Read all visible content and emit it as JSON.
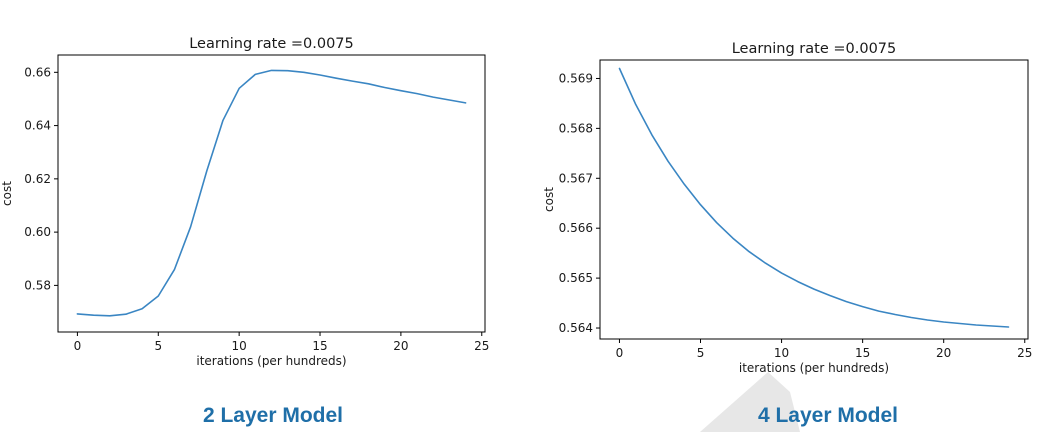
{
  "colors": {
    "line": "#3a86c3",
    "caption": "#1f6fa8",
    "watermark": "#e7e7e7"
  },
  "captions": [
    "2 Layer Model",
    "4 Layer Model"
  ],
  "chart_data": [
    {
      "type": "line",
      "title": "Learning rate =0.0075",
      "xlabel": "iterations (per hundreds)",
      "ylabel": "cost",
      "xlim": [
        -1.2,
        25.2
      ],
      "ylim": [
        0.5625,
        0.6665
      ],
      "xticks": [
        0,
        5,
        10,
        15,
        20,
        25
      ],
      "xtick_labels": [
        "0",
        "5",
        "10",
        "15",
        "20",
        "25"
      ],
      "yticks": [
        0.58,
        0.6,
        0.62,
        0.64,
        0.66
      ],
      "ytick_labels": [
        "0.58",
        "0.60",
        "0.62",
        "0.64",
        "0.66"
      ],
      "grid": false,
      "series": [
        {
          "x": [
            0,
            1,
            2,
            3,
            4,
            5,
            6,
            7,
            8,
            9,
            10,
            11,
            12,
            13,
            14,
            15,
            16,
            17,
            18,
            19,
            20,
            21,
            22,
            23,
            24
          ],
          "values": [
            0.5693,
            0.5688,
            0.5686,
            0.5692,
            0.5712,
            0.576,
            0.586,
            0.602,
            0.623,
            0.642,
            0.654,
            0.6592,
            0.6607,
            0.6606,
            0.66,
            0.659,
            0.6578,
            0.6567,
            0.6557,
            0.6543,
            0.6531,
            0.652,
            0.6507,
            0.6496,
            0.6485
          ]
        }
      ]
    },
    {
      "type": "line",
      "title": "Learning rate =0.0075",
      "xlabel": "iterations (per hundreds)",
      "ylabel": "cost",
      "xlim": [
        -1.2,
        25.2
      ],
      "ylim": [
        0.56378,
        0.56937
      ],
      "xticks": [
        0,
        5,
        10,
        15,
        20,
        25
      ],
      "xtick_labels": [
        "0",
        "5",
        "10",
        "15",
        "20",
        "25"
      ],
      "yticks": [
        0.564,
        0.565,
        0.566,
        0.567,
        0.568,
        0.569
      ],
      "ytick_labels": [
        "0.564",
        "0.565",
        "0.566",
        "0.567",
        "0.568",
        "0.569"
      ],
      "grid": false,
      "series": [
        {
          "x": [
            0,
            1,
            2,
            3,
            4,
            5,
            6,
            7,
            8,
            9,
            10,
            11,
            12,
            13,
            14,
            15,
            16,
            17,
            18,
            19,
            20,
            21,
            22,
            23,
            24
          ],
          "values": [
            0.5692,
            0.56848,
            0.56787,
            0.56734,
            0.56688,
            0.56647,
            0.56611,
            0.5658,
            0.56553,
            0.5653,
            0.5651,
            0.56493,
            0.56478,
            0.56465,
            0.56453,
            0.56443,
            0.56434,
            0.56427,
            0.56421,
            0.56416,
            0.56412,
            0.56409,
            0.56406,
            0.56404,
            0.56402
          ]
        }
      ]
    }
  ]
}
